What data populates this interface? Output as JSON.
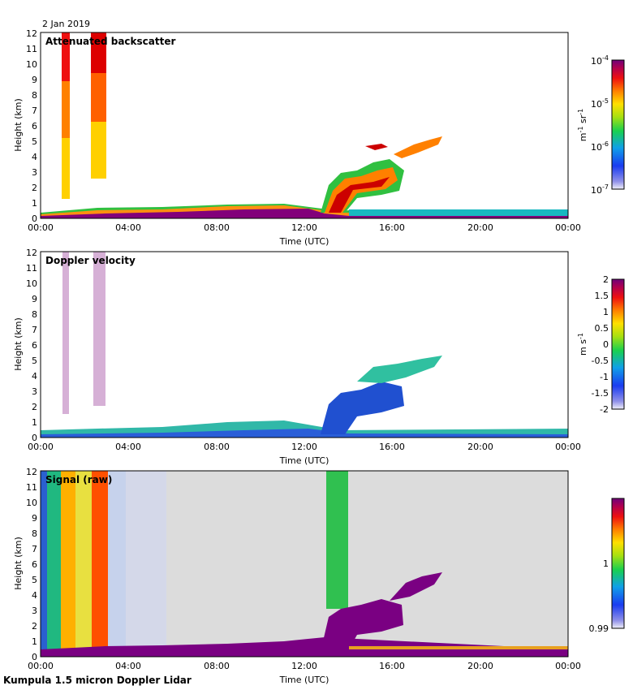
{
  "date": "2 Jan 2019",
  "footer": "Kumpula 1.5 micron Doppler Lidar",
  "colors": {
    "missing": "#dcdcdc",
    "frame": "#000000",
    "background": "#ffffff"
  },
  "chart_data": [
    {
      "type": "heatmap",
      "title": "Attenuated backscatter",
      "xlabel": "Time (UTC)",
      "ylabel": "Height (km)",
      "xlim": [
        0,
        24
      ],
      "ylim": [
        0,
        12
      ],
      "xticks": [
        "00:00",
        "04:00",
        "08:00",
        "12:00",
        "16:00",
        "20:00",
        "00:00"
      ],
      "yticks": [
        "0",
        "1",
        "2",
        "3",
        "4",
        "5",
        "6",
        "7",
        "8",
        "9",
        "10",
        "11",
        "12"
      ],
      "colorbar": {
        "scale": "log",
        "range": [
          1e-07,
          0.0001
        ],
        "unit_base": "m",
        "unit_exp": "-1",
        "unit_base2": " sr",
        "unit_exp2": "-1",
        "tick_bases": [
          "10",
          "10",
          "10",
          "10"
        ],
        "tick_exps": [
          "-7",
          "-6",
          "-5",
          "-4"
        ]
      }
    },
    {
      "type": "heatmap",
      "title": "Doppler velocity",
      "xlabel": "Time (UTC)",
      "ylabel": "Height (km)",
      "xlim": [
        0,
        24
      ],
      "ylim": [
        0,
        12
      ],
      "xticks": [
        "00:00",
        "04:00",
        "08:00",
        "12:00",
        "16:00",
        "20:00",
        "00:00"
      ],
      "yticks": [
        "0",
        "1",
        "2",
        "3",
        "4",
        "5",
        "6",
        "7",
        "8",
        "9",
        "10",
        "11",
        "12"
      ],
      "colorbar": {
        "scale": "linear",
        "range": [
          -2,
          2
        ],
        "unit_base": "m s",
        "unit_exp": "-1",
        "ticks": [
          "-2",
          "-1.5",
          "-1",
          "-0.5",
          "0",
          "0.5",
          "1",
          "1.5",
          "2"
        ]
      }
    },
    {
      "type": "heatmap",
      "title": "Signal (raw)",
      "xlabel": "Time (UTC)",
      "ylabel": "Height (km)",
      "xlim": [
        0,
        24
      ],
      "ylim": [
        0,
        12
      ],
      "xticks": [
        "00:00",
        "04:00",
        "08:00",
        "12:00",
        "16:00",
        "20:00",
        "00:00"
      ],
      "yticks": [
        "0",
        "1",
        "2",
        "3",
        "4",
        "5",
        "6",
        "7",
        "8",
        "9",
        "10",
        "11",
        "12"
      ],
      "colorbar": {
        "scale": "linear",
        "range": [
          0.99,
          1.01
        ],
        "ticks": [
          "0.99",
          "1"
        ]
      }
    }
  ]
}
